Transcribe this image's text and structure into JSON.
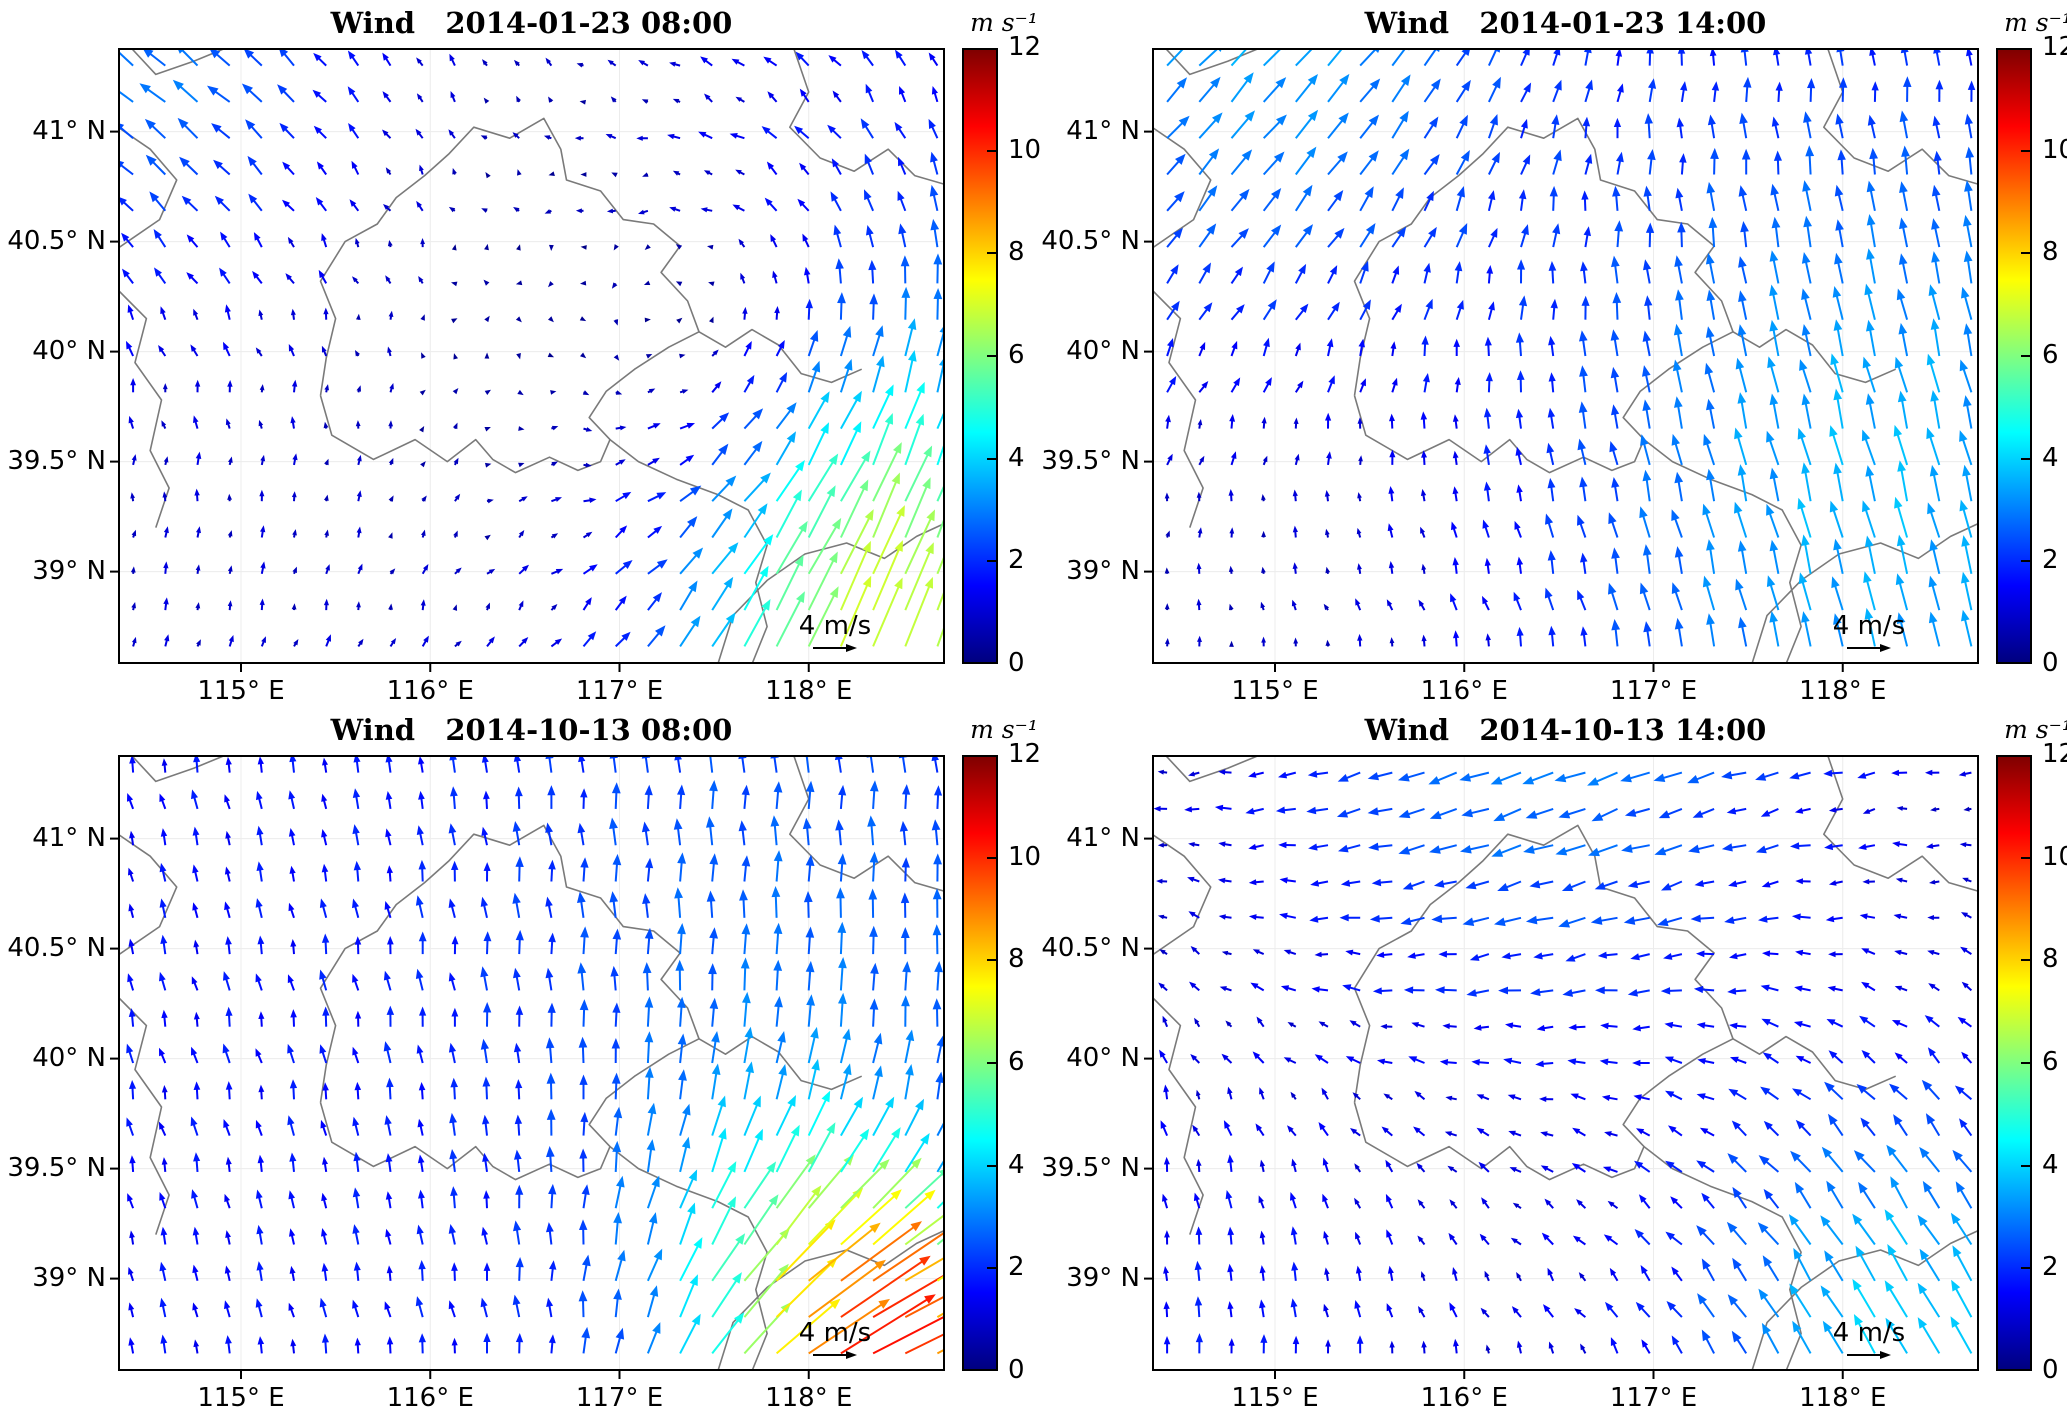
{
  "figure": {
    "background": "#ffffff"
  },
  "colorbar": {
    "unit_label": "m s⁻¹",
    "min": 0,
    "max": 12,
    "ticks": [
      0,
      2,
      4,
      6,
      8,
      10,
      12
    ],
    "colormap": "jet",
    "stops": [
      "#000080",
      "#0000ff",
      "#0080ff",
      "#00ffff",
      "#80ff80",
      "#ffff00",
      "#ff8000",
      "#ff0000",
      "#800000"
    ]
  },
  "chart_data": {
    "type": "quiver",
    "variable": "Wind",
    "x_range": [
      114.35,
      118.72
    ],
    "y_range": [
      38.58,
      41.38
    ],
    "x_ticks": {
      "values": [
        115,
        116,
        117,
        118
      ],
      "labels": [
        "115° E",
        "116° E",
        "117° E",
        "118° E"
      ]
    },
    "y_ticks": {
      "values": [
        39,
        39.5,
        40,
        40.5,
        41
      ],
      "labels": [
        "39° N",
        "39.5° N",
        "40° N",
        "40.5° N",
        "41° N"
      ]
    },
    "arrow_grid": {
      "lon_start": 114.43,
      "lat_start": 38.66,
      "dlon": 0.17,
      "dlat": 0.165
    },
    "reference_arrow": {
      "label": "4 m/s",
      "speed": 4
    },
    "speed_unit": "m/s",
    "panels": [
      {
        "title": "Wind   2014-01-23 08:00",
        "datetime": "2014-01-23 08:00",
        "flow": {
          "base": [
            0.2,
            0.9
          ],
          "features": [
            {
              "type": "gauss",
              "center": [
                118.35,
                38.65
              ],
              "sigma": 0.75,
              "uv": [
                1.6,
                5.2
              ]
            },
            {
              "type": "vortex",
              "center": [
                117.85,
                40.05
              ],
              "radius": 0.9,
              "strength": 2.2
            },
            {
              "type": "gauss",
              "center": [
                114.5,
                41.5
              ],
              "sigma": 0.9,
              "uv": [
                -2.6,
                1.0
              ]
            }
          ]
        }
      },
      {
        "title": "Wind   2014-01-23 14:00",
        "datetime": "2014-01-23 14:00",
        "flow": {
          "base": [
            0.3,
            1.1
          ],
          "features": [
            {
              "type": "gauss",
              "center": [
                118.2,
                39.3
              ],
              "sigma": 1.4,
              "uv": [
                -1.2,
                2.4
              ]
            },
            {
              "type": "gauss",
              "center": [
                114.9,
                41.35
              ],
              "sigma": 1.0,
              "uv": [
                2.0,
                1.4
              ]
            },
            {
              "type": "gauss",
              "center": [
                115.3,
                39.0
              ],
              "sigma": 1.0,
              "uv": [
                -0.5,
                -0.6
              ]
            }
          ]
        }
      },
      {
        "title": "Wind   2014-10-13 08:00",
        "datetime": "2014-10-13 08:00",
        "flow": {
          "base": [
            -0.35,
            1.5
          ],
          "features": [
            {
              "type": "gauss",
              "center": [
                118.45,
                38.6
              ],
              "sigma": 0.5,
              "uv": [
                8.0,
                1.2
              ]
            },
            {
              "type": "gauss",
              "center": [
                117.9,
                38.95
              ],
              "sigma": 0.55,
              "uv": [
                2.6,
                2.8
              ]
            },
            {
              "type": "gauss",
              "center": [
                117.9,
                40.3
              ],
              "sigma": 1.2,
              "uv": [
                0.4,
                1.2
              ]
            }
          ]
        }
      },
      {
        "title": "Wind   2014-10-13 14:00",
        "datetime": "2014-10-13 14:00",
        "flow": {
          "base": [
            -0.4,
            0.2
          ],
          "features": [
            {
              "type": "gauss",
              "center": [
                116.4,
                41.55
              ],
              "sigma": 1.3,
              "uv": [
                -2.4,
                -1.3
              ]
            },
            {
              "type": "gauss",
              "center": [
                118.35,
                38.7
              ],
              "sigma": 0.9,
              "uv": [
                -1.5,
                3.2
              ]
            },
            {
              "type": "gauss",
              "center": [
                114.7,
                38.8
              ],
              "sigma": 1.3,
              "uv": [
                0.4,
                1.5
              ]
            }
          ]
        }
      }
    ],
    "basemap": {
      "stroke": "#7a7a7a",
      "outlines": [
        [
          [
            115.42,
            39.8
          ],
          [
            115.48,
            39.62
          ],
          [
            115.7,
            39.51
          ],
          [
            115.92,
            39.6
          ],
          [
            116.09,
            39.5
          ],
          [
            116.24,
            39.6
          ],
          [
            116.33,
            39.51
          ],
          [
            116.45,
            39.45
          ],
          [
            116.63,
            39.52
          ],
          [
            116.78,
            39.46
          ],
          [
            116.9,
            39.5
          ],
          [
            116.95,
            39.6
          ],
          [
            116.84,
            39.7
          ],
          [
            116.93,
            39.82
          ],
          [
            117.08,
            39.92
          ],
          [
            117.26,
            40.02
          ],
          [
            117.42,
            40.09
          ],
          [
            117.36,
            40.23
          ],
          [
            117.22,
            40.36
          ],
          [
            117.32,
            40.48
          ],
          [
            117.18,
            40.58
          ],
          [
            117.02,
            40.6
          ],
          [
            116.9,
            40.73
          ],
          [
            116.72,
            40.78
          ],
          [
            116.69,
            40.92
          ],
          [
            116.6,
            41.06
          ],
          [
            116.42,
            40.97
          ],
          [
            116.23,
            41.02
          ],
          [
            116.1,
            40.9
          ],
          [
            115.97,
            40.8
          ],
          [
            115.82,
            40.7
          ],
          [
            115.72,
            40.58
          ],
          [
            115.55,
            40.5
          ],
          [
            115.42,
            40.32
          ],
          [
            115.5,
            40.15
          ],
          [
            115.45,
            39.97
          ],
          [
            115.42,
            39.8
          ]
        ],
        [
          [
            116.95,
            39.6
          ],
          [
            117.1,
            39.5
          ],
          [
            117.3,
            39.42
          ],
          [
            117.52,
            39.35
          ],
          [
            117.68,
            39.28
          ],
          [
            117.78,
            39.12
          ],
          [
            117.72,
            38.95
          ],
          [
            117.78,
            38.75
          ],
          [
            117.7,
            38.58
          ]
        ],
        [
          [
            117.52,
            38.58
          ],
          [
            117.6,
            38.8
          ],
          [
            117.78,
            38.96
          ],
          [
            117.98,
            39.08
          ],
          [
            118.2,
            39.13
          ],
          [
            118.4,
            39.06
          ],
          [
            118.57,
            39.16
          ],
          [
            118.72,
            39.22
          ]
        ],
        [
          [
            117.42,
            40.09
          ],
          [
            117.56,
            40.02
          ],
          [
            117.7,
            40.1
          ],
          [
            117.84,
            40.03
          ],
          [
            117.96,
            39.9
          ],
          [
            118.12,
            39.86
          ],
          [
            118.28,
            39.92
          ]
        ],
        [
          [
            114.35,
            40.28
          ],
          [
            114.5,
            40.15
          ],
          [
            114.44,
            39.95
          ],
          [
            114.58,
            39.78
          ],
          [
            114.52,
            39.55
          ],
          [
            114.62,
            39.38
          ],
          [
            114.55,
            39.2
          ]
        ],
        [
          [
            114.35,
            41.02
          ],
          [
            114.52,
            40.92
          ],
          [
            114.66,
            40.78
          ],
          [
            114.57,
            40.6
          ],
          [
            114.35,
            40.47
          ]
        ],
        [
          [
            114.42,
            41.38
          ],
          [
            114.55,
            41.26
          ],
          [
            114.75,
            41.32
          ],
          [
            114.92,
            41.38
          ]
        ],
        [
          [
            117.92,
            41.38
          ],
          [
            118.0,
            41.18
          ],
          [
            117.9,
            41.02
          ],
          [
            118.06,
            40.88
          ],
          [
            118.24,
            40.82
          ],
          [
            118.42,
            40.92
          ],
          [
            118.56,
            40.8
          ],
          [
            118.72,
            40.76
          ]
        ]
      ]
    }
  }
}
